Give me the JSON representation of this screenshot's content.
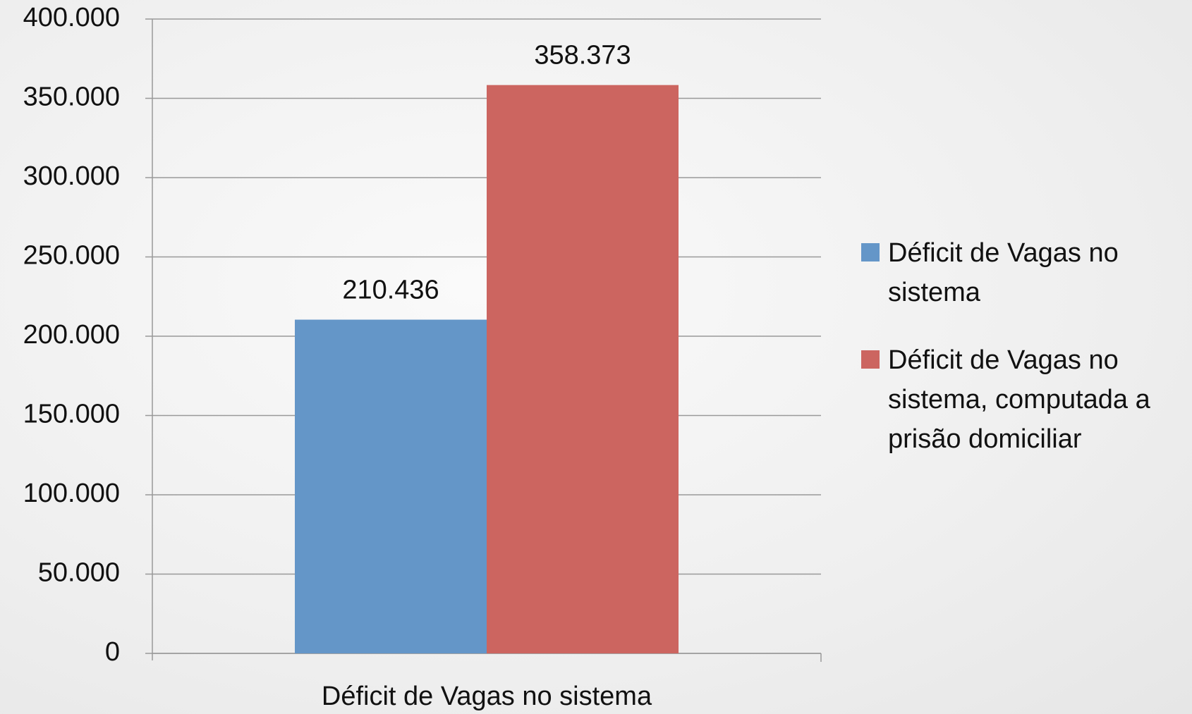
{
  "chart_data": {
    "type": "bar",
    "categories": [
      "Déficit de Vagas no sistema"
    ],
    "series": [
      {
        "name": "Déficit de Vagas no sistema",
        "color": "#6496c8",
        "values": [
          210436
        ],
        "value_labels": [
          "210.436"
        ]
      },
      {
        "name": "Déficit de Vagas no sistema, computada a prisão domiciliar",
        "color": "#cc6560",
        "values": [
          358373
        ],
        "value_labels": [
          "358.373"
        ]
      }
    ],
    "ylim": [
      0,
      400000
    ],
    "yticks": [
      0,
      {
        "value": 50000,
        "label": "50.000"
      },
      {
        "value": 100000,
        "label": "100.000"
      },
      {
        "value": 150000,
        "label": "150.000"
      },
      {
        "value": 200000,
        "label": "200.000"
      },
      {
        "value": 250000,
        "label": "250.000"
      },
      {
        "value": 300000,
        "label": "300.000"
      },
      {
        "value": 350000,
        "label": "350.000"
      },
      {
        "value": 400000,
        "label": "400.000"
      }
    ],
    "grid": true,
    "legend": "right"
  }
}
